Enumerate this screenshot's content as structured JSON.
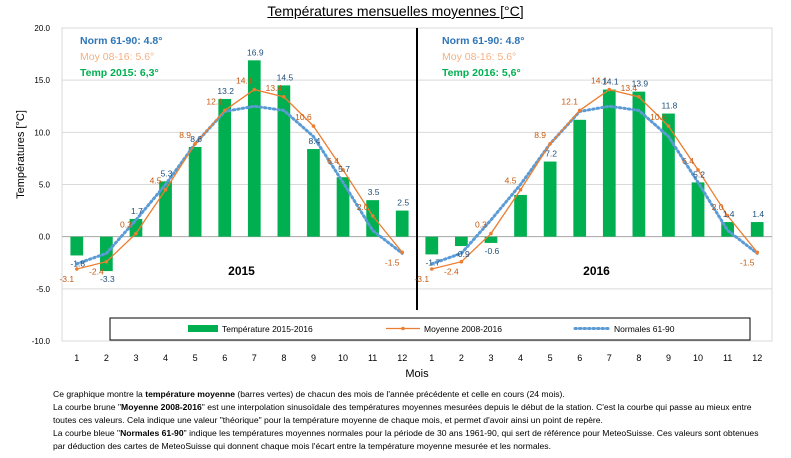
{
  "title": "Températures mensuelles moyennes  [°C]",
  "chart_data": {
    "type": "bar",
    "ylabel": "Températures [°C]",
    "xlabel": "Mois",
    "ylim": [
      -10,
      20
    ],
    "yticks": [
      "20.0",
      "15.0",
      "10.0",
      "5.0",
      "0.0",
      "-5.0",
      "-10.0"
    ],
    "categories": [
      "1",
      "2",
      "3",
      "4",
      "5",
      "6",
      "7",
      "8",
      "9",
      "10",
      "11",
      "12",
      "1",
      "2",
      "3",
      "4",
      "5",
      "6",
      "7",
      "8",
      "9",
      "10",
      "11",
      "12"
    ],
    "grid": "horizontal",
    "legend_position": "bottom",
    "panels": [
      {
        "label": "2015",
        "stats": {
          "norm": "Norm 61-90: 4.8°",
          "moy": "Moy 08-16:  5.6°",
          "temp": "Temp 2015: 6,3°"
        }
      },
      {
        "label": "2016",
        "stats": {
          "norm": "Norm 61-90: 4.8°",
          "moy": "Moy 08-16:  5.6°",
          "temp": "Temp 2016: 5,6°"
        }
      }
    ],
    "series": [
      {
        "name": "Température 2015-2016",
        "type": "bar",
        "color": "#00b050",
        "values": [
          -1.8,
          -3.3,
          1.7,
          5.3,
          8.6,
          13.2,
          16.9,
          14.5,
          8.4,
          5.7,
          3.5,
          2.5,
          -1.7,
          -0.9,
          -0.6,
          4.0,
          7.2,
          11.2,
          14.1,
          13.9,
          11.8,
          5.2,
          1.4,
          1.4
        ],
        "labels": [
          "-1.8",
          "-3.3",
          "1.7",
          "5.3",
          "8.6",
          "13.2",
          "16.9",
          "14.5",
          "8.4",
          "5.7",
          "3.5",
          "2.5",
          "-1.7",
          "-0.9",
          "-0.6",
          "",
          "7.2",
          "",
          "14.1",
          "13.9",
          "11.8",
          "5.2",
          "1.4",
          "1.4"
        ],
        "label_color": "#1f4e79"
      },
      {
        "name": "Moyenne 2008-2016",
        "type": "line",
        "color": "#ed7d31",
        "values": [
          -3.1,
          -2.4,
          0.3,
          4.5,
          8.9,
          12.1,
          14.1,
          13.4,
          10.6,
          6.4,
          2.0,
          -1.5,
          -3.1,
          -2.4,
          0.3,
          4.5,
          8.9,
          12.1,
          14.1,
          13.4,
          10.6,
          6.4,
          2.0,
          -1.5
        ],
        "labels": [
          "-3.1",
          "-2.4",
          "0.3",
          "4.5",
          "8.9",
          "12.1",
          "14.1",
          "13.4",
          "10.6",
          "6.4",
          "2.0",
          "-1.5",
          "-3.1",
          "-2.4",
          "0.3",
          "4.5",
          "8.9",
          "12.1",
          "14.1",
          "13.4",
          "10.6",
          "6.4",
          "2.0",
          "-1.5"
        ],
        "label_color": "#c55a11"
      },
      {
        "name": "Normales 61-90",
        "type": "line",
        "style": "dotted",
        "color": "#5b9bd5",
        "values": [
          -2.6,
          -1.6,
          1.6,
          5.0,
          8.9,
          12.0,
          12.5,
          12.1,
          9.6,
          5.2,
          0.6,
          -1.6,
          -2.6,
          -1.6,
          1.6,
          5.0,
          8.9,
          12.0,
          12.5,
          12.1,
          9.6,
          5.2,
          0.6,
          -1.6
        ]
      }
    ]
  },
  "caption": {
    "p1_a": "Ce graphique montre la ",
    "p1_b": "température moyenne",
    "p1_c": " (barres vertes) de chacun des mois de l'année précédente et celle en cours (24 mois).",
    "p2_a": "La courbe brune \"",
    "p2_b": "Moyenne 2008-2016",
    "p2_c": "\" est une interpolation sinusoïdale des  températures moyennes mesurées depuis le début de la station. C'est la courbe qui passe au mieux entre toutes ces valeurs. Cela indique une valeur \"théorique\" pour la température moyenne de chaque mois, et permet d'avoir ainsi un point de repère.",
    "p3_a": "La courbe bleue \"",
    "p3_b": "Normales 61-90",
    "p3_c": "\" indique les  températures moyennes normales pour la période de 30 ans 1961-90, qui sert de référence pour MeteoSuisse. Ces valeurs sont obtenues par déduction des cartes de MeteoSuisse qui donnent chaque mois l'écart entre la température moyenne mesurée et les normales."
  }
}
